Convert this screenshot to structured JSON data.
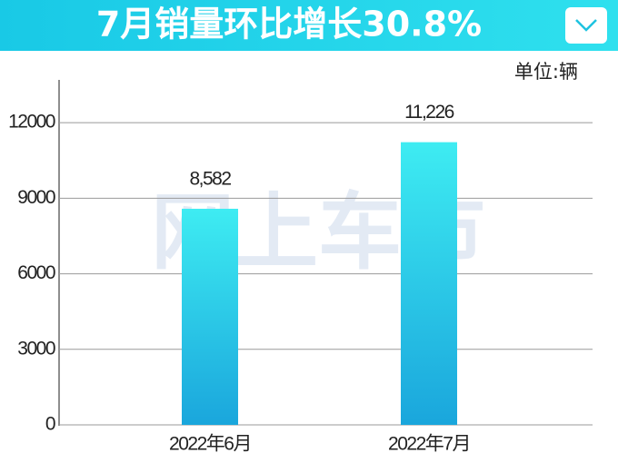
{
  "chart_data": {
    "type": "bar",
    "title": "7月销量环比增长30.8%",
    "unit_label": "单位:辆",
    "watermark": "网上车市",
    "categories": [
      "2022年6月",
      "2022年7月"
    ],
    "values": [
      8582,
      11226
    ],
    "value_labels": [
      "8,582",
      "11,226"
    ],
    "colors": [
      "#3eecf2",
      "#1aa6dc"
    ],
    "ylim": [
      0,
      13700
    ],
    "yticks": [
      0,
      3000,
      6000,
      9000,
      12000
    ],
    "grid": true
  }
}
